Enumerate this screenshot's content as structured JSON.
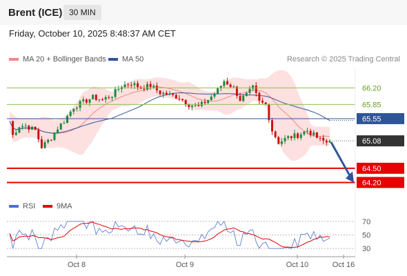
{
  "header": {
    "symbol": "Brent (ICE)",
    "timeframe": "30 MIN",
    "datetime": "Friday, October 10, 2025 8:48:37 AM CET"
  },
  "legend": {
    "ma20": "MA 20 + Bollinger Bands",
    "ma50": "MA 50",
    "credit": "Research © 2025 Trading Central"
  },
  "rsi_legend": {
    "rsi": "RSI",
    "ma9": "9MA"
  },
  "colors": {
    "ma20": "#f08a8a",
    "ma50": "#2f5597",
    "bands": "#fde0e0",
    "up": "#1a8a3c",
    "down": "#cc1111",
    "resistance": "#8cc152",
    "pivot": "#2f5597",
    "support": "#e60000",
    "last": "#333333",
    "arrow": "#2f5597"
  },
  "chart_data": [
    {
      "type": "candlestick",
      "ylim": [
        63.9,
        66.6
      ],
      "xticks": [
        "Oct 8",
        "Oct 9",
        "Oct 10",
        "Oct 16"
      ],
      "levels": [
        {
          "label": "66.20",
          "value": 66.2,
          "kind": "resistance"
        },
        {
          "label": "65.85",
          "value": 65.85,
          "kind": "resistance"
        },
        {
          "label": "65.55",
          "value": 65.55,
          "kind": "pivot"
        },
        {
          "label": "65.08",
          "value": 65.08,
          "kind": "last"
        },
        {
          "label": "64.50",
          "value": 64.5,
          "kind": "support"
        },
        {
          "label": "64.20",
          "value": 64.2,
          "kind": "support"
        }
      ],
      "close_path": [
        [
          0,
          65.5
        ],
        [
          1,
          65.2
        ],
        [
          3,
          65.4
        ],
        [
          5,
          65.4
        ],
        [
          8,
          65.3
        ],
        [
          10,
          64.95
        ],
        [
          13,
          65.15
        ],
        [
          15,
          65.35
        ],
        [
          17,
          65.5
        ],
        [
          20,
          65.8
        ],
        [
          23,
          65.9
        ],
        [
          26,
          66.0
        ],
        [
          29,
          65.95
        ],
        [
          32,
          66.05
        ],
        [
          35,
          66.25
        ],
        [
          38,
          66.3
        ],
        [
          41,
          66.2
        ],
        [
          44,
          66.25
        ],
        [
          47,
          66.1
        ],
        [
          50,
          66.05
        ],
        [
          53,
          66.0
        ],
        [
          56,
          65.85
        ],
        [
          59,
          65.8
        ],
        [
          62,
          65.95
        ],
        [
          65,
          66.15
        ],
        [
          67,
          66.35
        ],
        [
          70,
          66.2
        ],
        [
          72,
          65.95
        ],
        [
          74,
          66.05
        ],
        [
          76,
          66.2
        ],
        [
          78,
          65.9
        ],
        [
          80,
          65.85
        ],
        [
          82,
          65.3
        ],
        [
          84,
          65.05
        ],
        [
          87,
          65.15
        ],
        [
          90,
          65.2
        ],
        [
          93,
          65.3
        ],
        [
          95,
          65.2
        ],
        [
          97,
          65.1
        ],
        [
          99,
          65.05
        ],
        [
          100,
          65.08
        ]
      ],
      "forecast": {
        "from": 65.08,
        "to": 64.2
      }
    },
    {
      "type": "line",
      "title": "RSI",
      "yticks": [
        70,
        50,
        30
      ],
      "ylim": [
        22,
        78
      ]
    }
  ]
}
